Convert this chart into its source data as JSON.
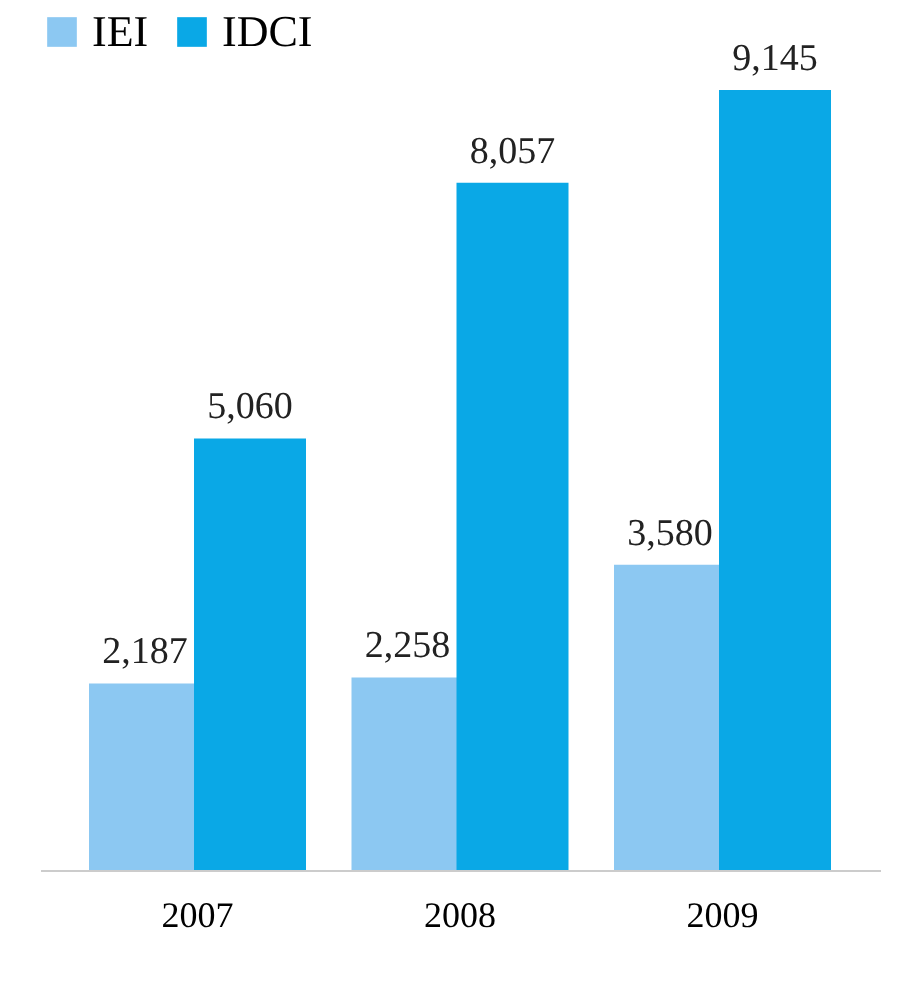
{
  "chart_data": {
    "type": "bar",
    "categories": [
      "2007",
      "2008",
      "2009"
    ],
    "series": [
      {
        "name": "IEI",
        "color": "#8cc8f2",
        "values": [
          2187,
          2258,
          3580
        ],
        "value_labels": [
          "2,187",
          "2,258",
          "3,580"
        ]
      },
      {
        "name": "IDCI",
        "color": "#0aa8e6",
        "values": [
          5060,
          8057,
          9145
        ],
        "value_labels": [
          "5,060",
          "8,057",
          "9,145"
        ]
      }
    ],
    "legend": "top",
    "grid": false
  }
}
